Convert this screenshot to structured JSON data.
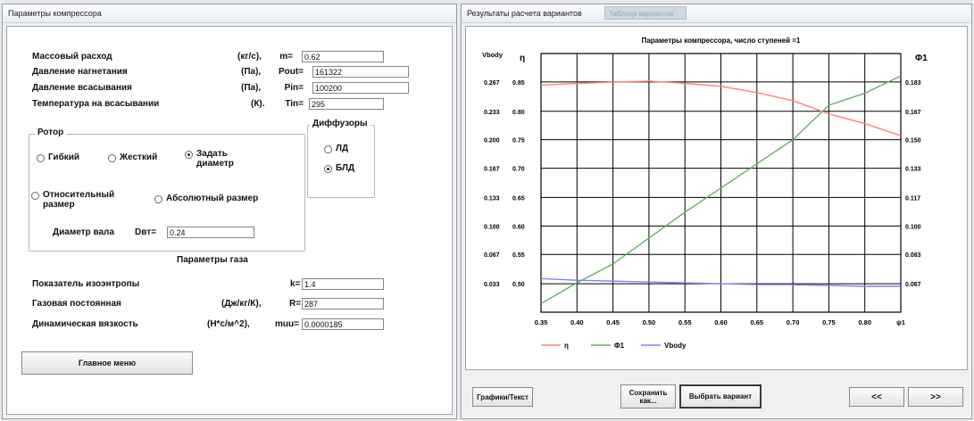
{
  "left_window": {
    "title": "Параметры компрессора",
    "rows": [
      {
        "label": "Массовый расход",
        "unit": "(кг/с),",
        "var": "m=",
        "value": "0.62"
      },
      {
        "label": "Давление нагнетания",
        "unit": "(Па),",
        "var": "Pout=",
        "value": "161322"
      },
      {
        "label": "Давление всасывания",
        "unit": "(Па),",
        "var": "Pin=",
        "value": "100200"
      },
      {
        "label": "Температура на всасывании",
        "unit": "(К).",
        "var": "Tin=",
        "value": "295"
      }
    ],
    "rotor": {
      "title": "Ротор",
      "options": [
        "Гибкий",
        "Жесткий",
        "Задать диаметр",
        "Относительный размер",
        "Абсолютный размер"
      ],
      "selected": "Задать диаметр",
      "shaft_label": "Диаметр вала",
      "shaft_var": "Dвт=",
      "shaft_value": "0.24"
    },
    "diffusers": {
      "title": "Диффузоры",
      "options": [
        "ЛД",
        "БЛД"
      ],
      "selected": "БЛД"
    },
    "gas": {
      "title": "Параметры газа",
      "rows": [
        {
          "label": "Показатель изоэнтропы",
          "unit": "",
          "var": "k=",
          "value": "1.4"
        },
        {
          "label": "Газовая постоянная",
          "unit": "(Дж/кг/К),",
          "var": "R=",
          "value": "287"
        },
        {
          "label": "Динамическая вязкость",
          "unit": "(Н*с/м^2),",
          "var": "muu=",
          "value": "0.0000185"
        }
      ]
    },
    "main_menu_button": "Главное меню"
  },
  "right_window": {
    "title": "Результаты расчета вариантов",
    "ghost_tab": "Таблица вариантов",
    "buttons": {
      "graph_text": "Графики/Текст",
      "save_as": "Сохранить как...",
      "choose": "Выбрать вариант",
      "prev": "<<",
      "next": ">>"
    }
  },
  "chart_data": {
    "type": "line",
    "title": "Параметры компрессора, число ступеней =1",
    "xlabel": "ψ1",
    "x": [
      0.35,
      0.4,
      0.45,
      0.5,
      0.55,
      0.6,
      0.65,
      0.7,
      0.75,
      0.8,
      0.85
    ],
    "x_ticks": [
      "0.35",
      "0.40",
      "0.45",
      "0.50",
      "0.55",
      "0.60",
      "0.65",
      "0.70",
      "0.75",
      "0.80",
      "ψ1"
    ],
    "xlim": [
      0.35,
      0.85
    ],
    "left_axis_vbody": {
      "label": "Vbody",
      "ticks": [
        "0.267",
        "0.233",
        "0.200",
        "0.167",
        "0.133",
        "0.100",
        "0.067",
        "0.033"
      ],
      "range": [
        0.0,
        0.3
      ]
    },
    "left_axis_eta": {
      "label": "η",
      "ticks": [
        "0.85",
        "0.80",
        "0.75",
        "0.70",
        "0.65",
        "0.60",
        "0.55",
        "0.50"
      ],
      "range": [
        0.45,
        0.9
      ]
    },
    "right_axis_phi": {
      "label": "Φ1",
      "ticks": [
        "0.183",
        "0.167",
        "0.150",
        "0.133",
        "0.117",
        "0.100",
        "0.083",
        "0.067"
      ],
      "range": [
        0.05,
        0.2
      ]
    },
    "series": [
      {
        "name": "η",
        "axis": "eta",
        "color": "#ff8080",
        "values": [
          0.845,
          0.848,
          0.85,
          0.852,
          0.848,
          0.843,
          0.832,
          0.818,
          0.795,
          0.778,
          0.757
        ]
      },
      {
        "name": "Φ1",
        "axis": "phi",
        "color": "#60b060",
        "values": [
          0.055,
          0.067,
          0.078,
          0.093,
          0.108,
          0.122,
          0.136,
          0.15,
          0.17,
          0.177,
          0.187
        ]
      },
      {
        "name": "Vbody",
        "axis": "vbody",
        "color": "#8080ff",
        "values": [
          0.039,
          0.037,
          0.036,
          0.035,
          0.034,
          0.033,
          0.032,
          0.032,
          0.031,
          0.03,
          0.03
        ]
      }
    ],
    "legend": [
      "η",
      "Φ1",
      "Vbody"
    ],
    "legend_placement": "bottom-left",
    "grid": true
  }
}
